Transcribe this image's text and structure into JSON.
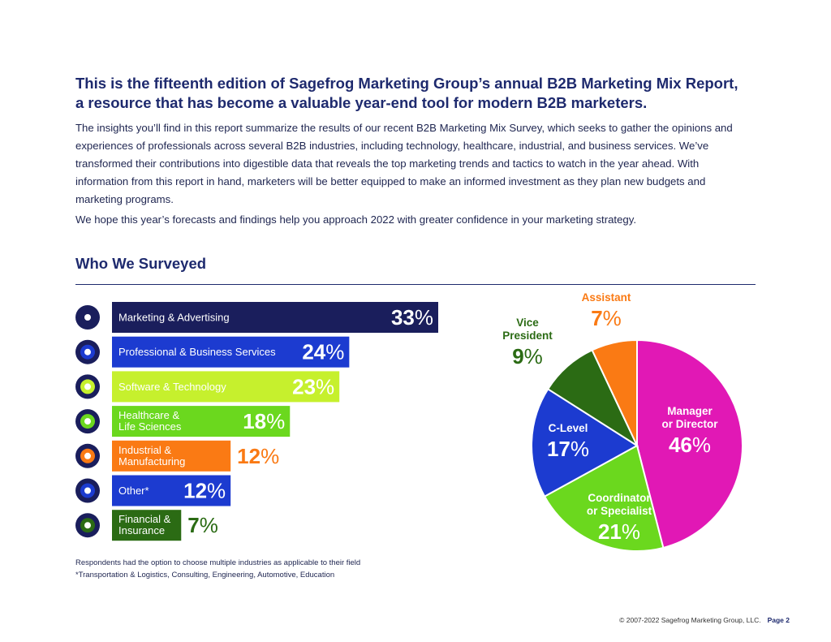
{
  "intro": {
    "headline": "This is the fifteenth edition of Sagefrog Marketing Group’s annual B2B Marketing Mix Report, a resource that has become a valuable year-end tool for modern B2B marketers.",
    "paragraph1": "The insights you’ll find in this report summarize the results of our recent B2B Marketing Mix Survey, which seeks to gather the opinions and experiences of professionals across several B2B industries, including technology, healthcare, industrial, and business services. We’ve transformed their contributions into digestible data that reveals the top marketing trends and tactics to watch in the year ahead. With information from this report in hand, marketers will be better equipped to make an informed investment as they plan new budgets and marketing programs.",
    "paragraph2": "We hope this year’s forecasts and findings help you approach 2022 with greater confidence in your marketing strategy."
  },
  "section": {
    "title": "Who We Surveyed"
  },
  "notes": {
    "line1": "Respondents had the option to choose multiple industries as applicable to their field",
    "line2": "*Transportation & Logistics, Consulting, Engineering, Automotive, Education"
  },
  "footer": {
    "copyright": "© 2007-2022 Sagefrog Marketing Group, LLC.",
    "page": "Page 2"
  },
  "chart_data": [
    {
      "type": "bar",
      "orientation": "horizontal",
      "title": "",
      "unit": "%",
      "categories": [
        [
          "Marketing & Advertising"
        ],
        [
          "Professional & Business Services"
        ],
        [
          "Software & Technology"
        ],
        [
          "Healthcare &",
          "Life Sciences"
        ],
        [
          "Industrial &",
          "Manufacturing"
        ],
        [
          "Other*"
        ],
        [
          "Financial &",
          "Insurance"
        ]
      ],
      "values": [
        33,
        24,
        23,
        18,
        12,
        12,
        7
      ],
      "colors": [
        "#1a1e5c",
        "#1c3bd0",
        "#c6f02d",
        "#6bd81e",
        "#fa7a14",
        "#1c3bd0",
        "#2b6b14"
      ],
      "label_colors": [
        "#ffffff",
        "#ffffff",
        "#ffffff",
        "#ffffff",
        "#ffffff",
        "#ffffff",
        "#ffffff"
      ],
      "value_label_colors": [
        "#ffffff",
        "#ffffff",
        "#ffffff",
        "#ffffff",
        "#fa7a14",
        "#ffffff",
        "#2b6b14"
      ],
      "icons": [
        "megaphone-icon",
        "businessperson-icon",
        "dna-icon",
        "factory-icon",
        "team-icon",
        "presentation-icon",
        "shield-dollar-icon"
      ],
      "xlim": [
        0,
        33
      ]
    },
    {
      "type": "pie",
      "title": "",
      "unit": "%",
      "slices": [
        {
          "label": [
            "Manager",
            "or Director"
          ],
          "value": 46,
          "color": "#e118b5",
          "label_color": "#ffffff"
        },
        {
          "label": [
            "Coordinator",
            "or Specialist"
          ],
          "value": 21,
          "color": "#6bd81e",
          "label_color": "#ffffff"
        },
        {
          "label": [
            "C-Level"
          ],
          "value": 17,
          "color": "#1c3bd0",
          "label_color": "#ffffff"
        },
        {
          "label": [
            "Vice",
            "President"
          ],
          "value": 9,
          "color": "#2b6b14",
          "label_color": "#2b6b14"
        },
        {
          "label": [
            "Assistant"
          ],
          "value": 7,
          "color": "#fa7a14",
          "label_color": "#fa7a14"
        }
      ]
    }
  ]
}
